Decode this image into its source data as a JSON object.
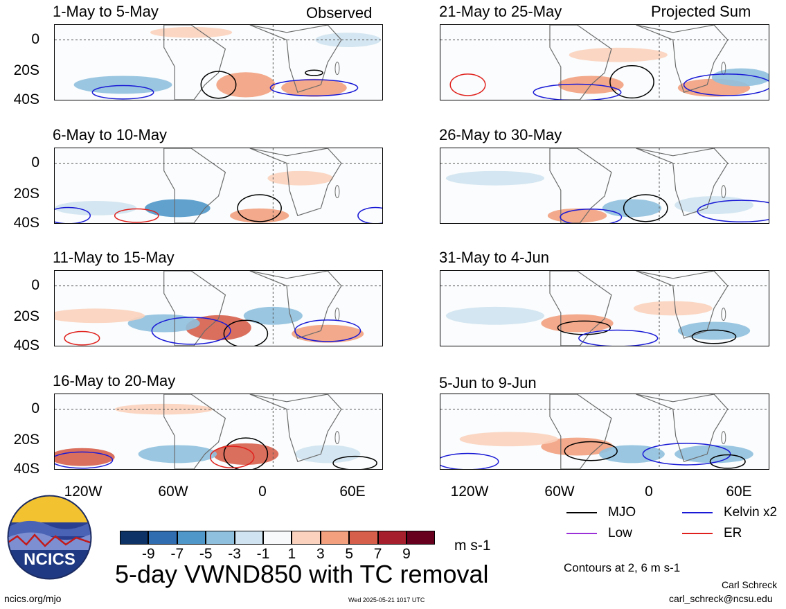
{
  "header": {
    "left_tag": "Observed",
    "right_tag": "Projected Sum"
  },
  "lat_labels": [
    "0",
    "20S",
    "40S"
  ],
  "lon_labels": [
    "120W",
    "60W",
    "0",
    "60E"
  ],
  "panels_left": [
    {
      "title": "1-May to 5-May"
    },
    {
      "title": "6-May to 10-May"
    },
    {
      "title": "11-May to 15-May"
    },
    {
      "title": "16-May to 20-May"
    }
  ],
  "panels_right": [
    {
      "title": "21-May to 25-May"
    },
    {
      "title": "26-May to 30-May"
    },
    {
      "title": "31-May to 4-Jun"
    },
    {
      "title": "5-Jun to 9-Jun"
    }
  ],
  "colorbar": {
    "labels": [
      "-9",
      "-7",
      "-5",
      "-3",
      "-1",
      "1",
      "3",
      "5",
      "7",
      "9"
    ],
    "colors": [
      "#0d3366",
      "#2f6db0",
      "#4f97c9",
      "#8fc0de",
      "#cfe3f0",
      "#f7f9fa",
      "#fbd2bd",
      "#f2a07e",
      "#d65f4c",
      "#a51f2c",
      "#67001f"
    ],
    "units": "m s-1"
  },
  "legend": {
    "items": [
      {
        "label": "MJO",
        "color": "#000000"
      },
      {
        "label": "Kelvin x2",
        "color": "#1a1ad6"
      },
      {
        "label": "Low",
        "color": "#9b30d8"
      },
      {
        "label": "ER",
        "color": "#e0201c"
      }
    ],
    "note": "Contours at 2, 6 m s-1"
  },
  "main_title": "5-day VWND850 with TC removal",
  "logo_text": "NCICS",
  "footer": {
    "left": "ncics.org/mjo",
    "center": "Wed 2025-05-21 1017 UTC",
    "author": "Carl Schreck",
    "email": "carl_schreck@ncsu.edu"
  }
}
